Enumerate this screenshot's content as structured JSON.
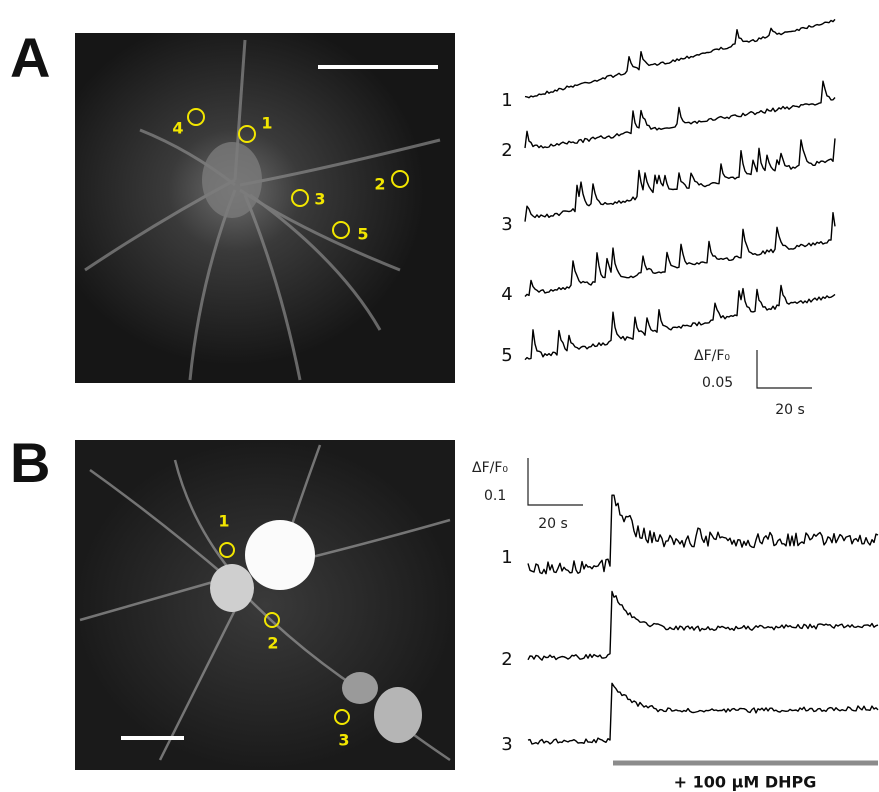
{
  "panels": [
    {
      "label": "A",
      "rois": [
        "1",
        "2",
        "3",
        "4",
        "5"
      ],
      "traces": [
        "1",
        "2",
        "3",
        "4",
        "5"
      ],
      "scale": {
        "y_label": "ΔF/F₀",
        "y_value": "0.05",
        "x_value": "20 s"
      }
    },
    {
      "label": "B",
      "rois": [
        "1",
        "2",
        "3"
      ],
      "traces": [
        "1",
        "2",
        "3"
      ],
      "scale": {
        "y_label": "ΔF/F₀",
        "y_value": "0.1",
        "x_value": "20 s"
      },
      "treatment": "+ 100 µM DHPG"
    }
  ]
}
